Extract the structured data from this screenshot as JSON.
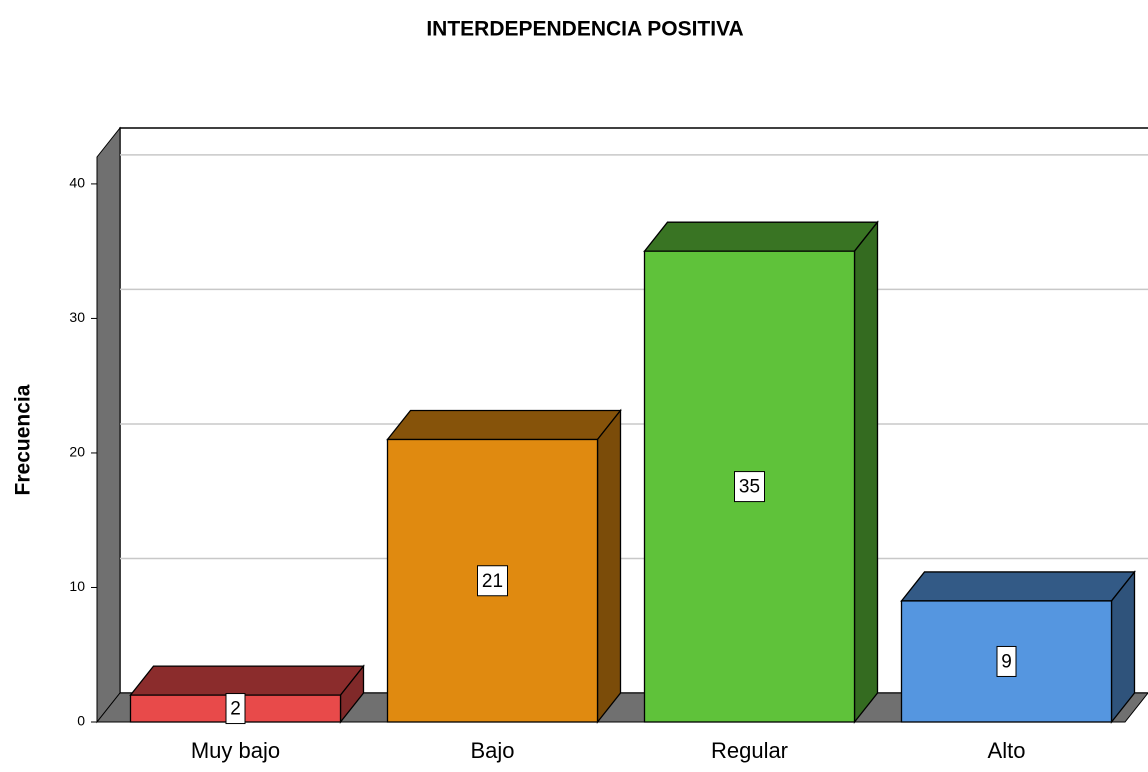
{
  "chart_data": {
    "type": "bar3d",
    "title": "INTERDEPENDENCIA POSITIVA",
    "ylabel": "Frecuencia",
    "categories": [
      "Muy bajo",
      "Bajo",
      "Regular",
      "Alto"
    ],
    "values": [
      2,
      21,
      35,
      9
    ],
    "colors": [
      "#e84a4a",
      "#e08a10",
      "#5fc23a",
      "#5596e0"
    ],
    "ylim": [
      0,
      42
    ],
    "yticks": [
      0,
      10,
      20,
      30,
      40
    ],
    "grid": true
  }
}
